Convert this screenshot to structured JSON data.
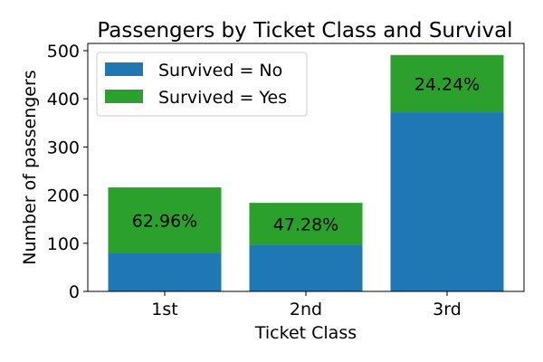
{
  "colors": {
    "no": "#1f77b4",
    "yes": "#2ca02c"
  },
  "chart_data": {
    "type": "bar",
    "stacked": true,
    "title": "Passengers by Ticket Class and Survival",
    "xlabel": "Ticket Class",
    "ylabel": "Number of passengers",
    "categories": [
      "1st",
      "2nd",
      "3rd"
    ],
    "series": [
      {
        "name": "Survived = No",
        "values": [
          80,
          97,
          372
        ]
      },
      {
        "name": "Survived = Yes",
        "values": [
          136,
          87,
          119
        ]
      }
    ],
    "data_labels": [
      "62.96%",
      "47.28%",
      "24.24%"
    ],
    "ylim": [
      0,
      515
    ],
    "yticks": [
      0,
      100,
      200,
      300,
      400,
      500
    ],
    "legend": "top-left",
    "grid": false
  }
}
